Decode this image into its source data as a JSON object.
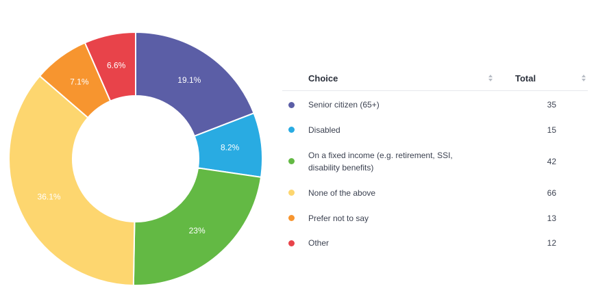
{
  "chart_data": {
    "type": "pie",
    "categories": [
      "Senior citizen (65+)",
      "Disabled",
      "On a fixed income (e.g. retirement, SSI, disability benefits)",
      "None of the above",
      "Prefer not to say",
      "Other"
    ],
    "values": [
      35,
      15,
      42,
      66,
      13,
      12
    ],
    "slice_labels": [
      "19.1%",
      "8.2%",
      "23%",
      "36.1%",
      "7.1%",
      "6.6%"
    ],
    "colors": [
      "#5b5ea6",
      "#29abe2",
      "#63b944",
      "#fdd66f",
      "#f7952f",
      "#e8434a"
    ]
  },
  "table": {
    "headers": {
      "choice": "Choice",
      "total": "Total"
    },
    "rows": [
      {
        "label": "Senior citizen (65+)",
        "total": "35"
      },
      {
        "label": "Disabled",
        "total": "15"
      },
      {
        "label": "On a fixed income (e.g. retirement, SSI, disability benefits)",
        "total": "42"
      },
      {
        "label": "None of the above",
        "total": "66"
      },
      {
        "label": "Prefer not to say",
        "total": "13"
      },
      {
        "label": "Other",
        "total": "12"
      }
    ]
  }
}
